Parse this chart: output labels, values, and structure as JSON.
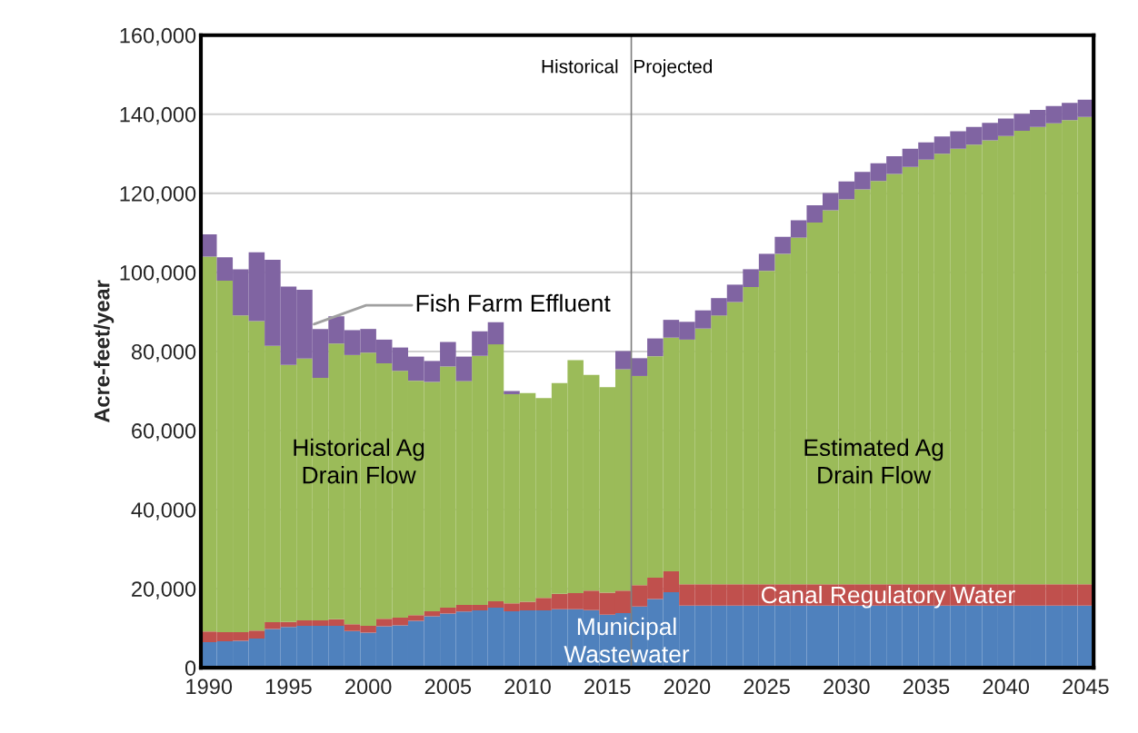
{
  "chart_data": {
    "type": "bar",
    "stacked": true,
    "ylabel": "Acre-feet/year",
    "x": [
      1990,
      1991,
      1992,
      1993,
      1994,
      1995,
      1996,
      1997,
      1998,
      1999,
      2000,
      2001,
      2002,
      2003,
      2004,
      2005,
      2006,
      2007,
      2008,
      2009,
      2010,
      2011,
      2012,
      2013,
      2014,
      2015,
      2016,
      2017,
      2018,
      2019,
      2020,
      2021,
      2022,
      2023,
      2024,
      2025,
      2026,
      2027,
      2028,
      2029,
      2030,
      2031,
      2032,
      2033,
      2034,
      2035,
      2036,
      2037,
      2038,
      2039,
      2040,
      2041,
      2042,
      2043,
      2044,
      2045
    ],
    "series": [
      {
        "color": "#4f81bd",
        "values": [
          6500,
          6700,
          6800,
          7400,
          9800,
          10300,
          10600,
          10600,
          10600,
          9300,
          8900,
          10500,
          10700,
          11900,
          13000,
          13700,
          14200,
          14500,
          15200,
          14300,
          14500,
          14500,
          14800,
          14800,
          14600,
          13400,
          13800,
          15500,
          17400,
          19100,
          15700,
          15700,
          15700,
          15700,
          15700,
          15700,
          15700,
          15700,
          15700,
          15700,
          15700,
          15700,
          15700,
          15700,
          15700,
          15700,
          15700,
          15700,
          15700,
          15700,
          15700,
          15700,
          15700,
          15700,
          15700,
          15700
        ]
      },
      {
        "color": "#c0504d",
        "values": [
          2700,
          2300,
          2200,
          2000,
          1700,
          1300,
          1400,
          1400,
          1700,
          1700,
          1700,
          1900,
          2000,
          1400,
          1300,
          1500,
          1700,
          1400,
          1600,
          2000,
          2200,
          3200,
          3900,
          4100,
          4900,
          5600,
          5700,
          5400,
          5400,
          5300,
          5400,
          5400,
          5400,
          5400,
          5400,
          5400,
          5400,
          5400,
          5400,
          5400,
          5400,
          5400,
          5400,
          5400,
          5400,
          5400,
          5400,
          5400,
          5400,
          5400,
          5400,
          5400,
          5400,
          5400,
          5400,
          5400
        ]
      },
      {
        "color": "#9bbb59",
        "values": [
          94800,
          88900,
          80100,
          78300,
          69900,
          65000,
          66200,
          61300,
          69700,
          68100,
          69100,
          64600,
          62400,
          59300,
          58000,
          61000,
          56600,
          63000,
          65000,
          52900,
          52800,
          50500,
          53300,
          58900,
          54600,
          52000,
          56000,
          52900,
          56000,
          59100,
          61900,
          64700,
          68000,
          71400,
          75200,
          79300,
          83600,
          87700,
          91500,
          94600,
          97400,
          99900,
          102000,
          103800,
          105600,
          107400,
          108900,
          110200,
          111200,
          112300,
          113400,
          114700,
          115700,
          116600,
          117400,
          118200
        ]
      },
      {
        "color": "#8064a2",
        "values": [
          5600,
          5900,
          11700,
          17400,
          21800,
          19800,
          17400,
          12400,
          6900,
          6300,
          6000,
          6000,
          5900,
          6100,
          5300,
          6200,
          6200,
          6200,
          5600,
          800,
          0,
          0,
          0,
          0,
          0,
          0,
          4600,
          4500,
          4500,
          4500,
          4500,
          4600,
          4400,
          4400,
          4500,
          4300,
          4300,
          4400,
          4400,
          4400,
          4500,
          4400,
          4500,
          4500,
          4600,
          4400,
          4400,
          4400,
          4500,
          4400,
          4400,
          4300,
          4300,
          4400,
          4400,
          4400
        ]
      }
    ],
    "xlim": [
      1989.5,
      2045.5
    ],
    "xticks": [
      1990,
      1995,
      2000,
      2005,
      2010,
      2015,
      2020,
      2025,
      2030,
      2035,
      2040,
      2045
    ],
    "ylim": [
      0,
      160000
    ],
    "yticks": [
      0,
      {
        "value": 20000,
        "label": "20,000"
      },
      {
        "value": 40000,
        "label": "40,000"
      },
      {
        "value": 60000,
        "label": "60,000"
      },
      {
        "value": 80000,
        "label": "80,000"
      },
      {
        "value": 100000,
        "label": "100,000"
      },
      {
        "value": 120000,
        "label": "120,000"
      },
      {
        "value": 140000,
        "label": "140,000"
      },
      {
        "value": 160000,
        "label": "160,000"
      }
    ],
    "grid": "y",
    "ref_lines": [
      {
        "axis": "x",
        "value": 2016.5,
        "color": "#808080"
      }
    ],
    "annotations": [
      "Historical",
      "Projected",
      {
        "text": "Fish Farm Effluent",
        "x": 1996.6,
        "y": 86900
      },
      {
        "text": "Historical Ag\nDrain Flow",
        "x": 1999.4,
        "y": 51700
      },
      {
        "text": "Estimated Ag\nDrain Flow",
        "x": 2031.7,
        "y": 51700
      },
      {
        "text": "Canal Regulatory Water",
        "x": 2032.6,
        "y": 17900
      },
      "Municipal\nWastewater"
    ]
  }
}
